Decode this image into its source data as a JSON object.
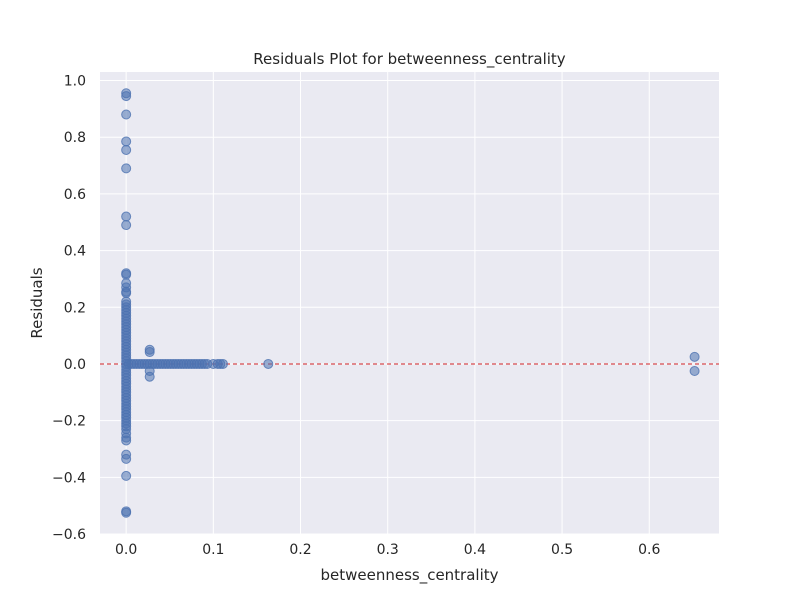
{
  "chart_data": {
    "type": "scatter",
    "title": "Residuals Plot for betweenness_centrality",
    "xlabel": "betweenness_centrality",
    "ylabel": "Residuals",
    "xlim": [
      -0.03,
      0.68
    ],
    "ylim": [
      -0.6,
      1.03
    ],
    "xticks": [
      0.0,
      0.1,
      0.2,
      0.3,
      0.4,
      0.5,
      0.6
    ],
    "xtick_labels": [
      "0.0",
      "0.1",
      "0.2",
      "0.3",
      "0.4",
      "0.5",
      "0.6"
    ],
    "yticks": [
      -0.6,
      -0.4,
      -0.2,
      0.0,
      0.2,
      0.4,
      0.6,
      0.8,
      1.0
    ],
    "ytick_labels": [
      "−0.6",
      "−0.4",
      "−0.2",
      "0.0",
      "0.2",
      "0.4",
      "0.6",
      "0.8",
      "1.0"
    ],
    "grid": true,
    "reference_line": {
      "y": 0.0,
      "style": "dashed",
      "color": "#d62728"
    },
    "colors": {
      "background": "#eaeaf2",
      "points": "#4c72b0",
      "grid": "#ffffff"
    },
    "series": [
      {
        "points": [
          [
            0.0,
            0.955
          ],
          [
            0.0,
            0.945
          ],
          [
            0.0,
            0.88
          ],
          [
            0.0,
            0.785
          ],
          [
            0.0,
            0.755
          ],
          [
            0.0,
            0.69
          ],
          [
            0.0,
            0.52
          ],
          [
            0.0,
            0.49
          ],
          [
            0.0,
            0.32
          ],
          [
            0.0,
            0.315
          ],
          [
            0.0,
            0.285
          ],
          [
            0.0,
            0.27
          ],
          [
            0.0,
            0.255
          ],
          [
            0.0,
            0.25
          ],
          [
            0.0,
            0.22
          ],
          [
            0.0,
            0.21
          ],
          [
            0.0,
            0.2
          ],
          [
            0.0,
            0.19
          ],
          [
            0.0,
            0.18
          ],
          [
            0.0,
            0.17
          ],
          [
            0.0,
            0.16
          ],
          [
            0.0,
            0.15
          ],
          [
            0.0,
            0.14
          ],
          [
            0.0,
            0.13
          ],
          [
            0.0,
            0.12
          ],
          [
            0.0,
            0.11
          ],
          [
            0.0,
            0.1
          ],
          [
            0.0,
            0.09
          ],
          [
            0.0,
            0.08
          ],
          [
            0.0,
            0.07
          ],
          [
            0.0,
            0.06
          ],
          [
            0.0,
            0.05
          ],
          [
            0.0,
            0.04
          ],
          [
            0.0,
            0.03
          ],
          [
            0.0,
            0.02
          ],
          [
            0.0,
            0.01
          ],
          [
            0.0,
            0.0
          ],
          [
            0.0,
            -0.01
          ],
          [
            0.0,
            -0.02
          ],
          [
            0.0,
            -0.03
          ],
          [
            0.0,
            -0.04
          ],
          [
            0.0,
            -0.05
          ],
          [
            0.0,
            -0.06
          ],
          [
            0.0,
            -0.07
          ],
          [
            0.0,
            -0.08
          ],
          [
            0.0,
            -0.09
          ],
          [
            0.0,
            -0.1
          ],
          [
            0.0,
            -0.11
          ],
          [
            0.0,
            -0.12
          ],
          [
            0.0,
            -0.13
          ],
          [
            0.0,
            -0.14
          ],
          [
            0.0,
            -0.15
          ],
          [
            0.0,
            -0.16
          ],
          [
            0.0,
            -0.17
          ],
          [
            0.0,
            -0.18
          ],
          [
            0.0,
            -0.19
          ],
          [
            0.0,
            -0.2
          ],
          [
            0.0,
            -0.21
          ],
          [
            0.0,
            -0.22
          ],
          [
            0.0,
            -0.23
          ],
          [
            0.0,
            -0.245
          ],
          [
            0.0,
            -0.26
          ],
          [
            0.0,
            -0.27
          ],
          [
            0.0,
            -0.32
          ],
          [
            0.0,
            -0.335
          ],
          [
            0.0,
            -0.395
          ],
          [
            0.0,
            -0.52
          ],
          [
            0.0,
            -0.525
          ],
          [
            0.003,
            0.0
          ],
          [
            0.006,
            0.0
          ],
          [
            0.009,
            0.0
          ],
          [
            0.012,
            0.0
          ],
          [
            0.015,
            0.0
          ],
          [
            0.018,
            0.0
          ],
          [
            0.021,
            0.0
          ],
          [
            0.024,
            0.0
          ],
          [
            0.027,
            0.05
          ],
          [
            0.027,
            0.042
          ],
          [
            0.027,
            -0.025
          ],
          [
            0.027,
            -0.045
          ],
          [
            0.027,
            0.0
          ],
          [
            0.03,
            0.0
          ],
          [
            0.033,
            0.0
          ],
          [
            0.036,
            0.0
          ],
          [
            0.039,
            0.0
          ],
          [
            0.042,
            0.0
          ],
          [
            0.045,
            0.0
          ],
          [
            0.048,
            0.0
          ],
          [
            0.051,
            0.0
          ],
          [
            0.054,
            0.0
          ],
          [
            0.057,
            0.0
          ],
          [
            0.06,
            0.0
          ],
          [
            0.063,
            0.0
          ],
          [
            0.066,
            0.0
          ],
          [
            0.069,
            0.0
          ],
          [
            0.072,
            0.0
          ],
          [
            0.075,
            0.0
          ],
          [
            0.078,
            0.0
          ],
          [
            0.081,
            0.0
          ],
          [
            0.084,
            0.0
          ],
          [
            0.087,
            0.0
          ],
          [
            0.09,
            0.0
          ],
          [
            0.093,
            0.0
          ],
          [
            0.1,
            0.0
          ],
          [
            0.105,
            0.0
          ],
          [
            0.108,
            0.0
          ],
          [
            0.111,
            0.0
          ],
          [
            0.163,
            0.0
          ],
          [
            0.652,
            0.025
          ],
          [
            0.652,
            -0.025
          ]
        ]
      }
    ]
  }
}
